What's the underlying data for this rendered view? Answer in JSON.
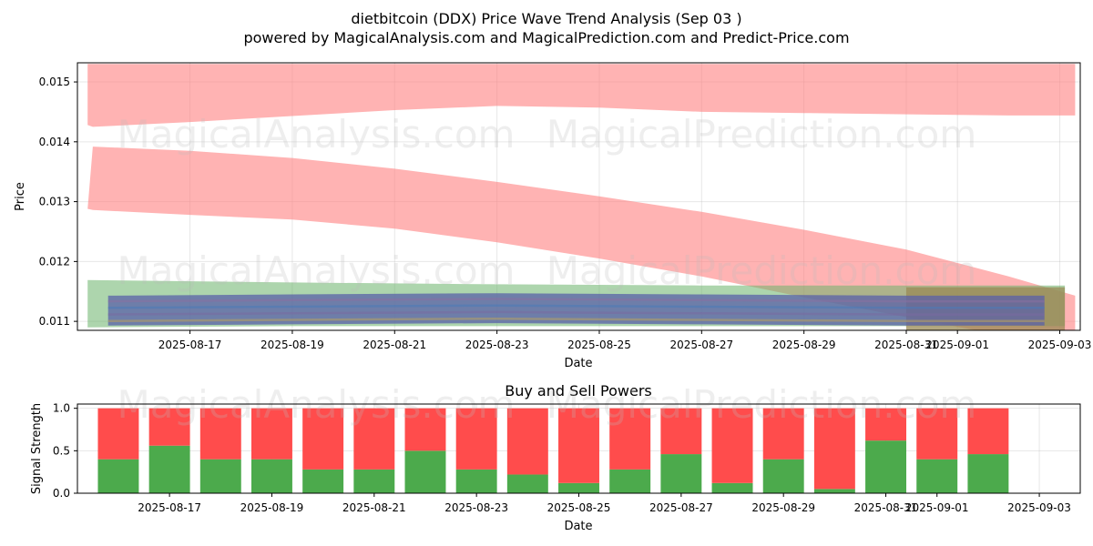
{
  "title": "dietbitcoin (DDX) Price Wave Trend Analysis (Sep 03 )",
  "subtitle": "powered by MagicalAnalysis.com and MagicalPrediction.com and Predict-Price.com",
  "watermark": {
    "left": "MagicalAnalysis.com",
    "right": "MagicalPrediction.com"
  },
  "colors": {
    "red_band": "#ff8080",
    "green_band": "#6ab36a",
    "buy": "#4caa4c",
    "sell": "#ff4c4c",
    "grid": "#b0b0b0"
  },
  "chart_data": [
    {
      "type": "area",
      "xlabel": "Date",
      "ylabel": "Price",
      "x_ticks": [
        "2025-08-17",
        "2025-08-19",
        "2025-08-21",
        "2025-08-23",
        "2025-08-25",
        "2025-08-27",
        "2025-08-29",
        "2025-08-31",
        "2025-09-01",
        "2025-09-03"
      ],
      "x_tick_days": [
        2,
        4,
        6,
        8,
        10,
        12,
        14,
        16,
        17,
        19
      ],
      "y_ticks": [
        "0.011",
        "0.012",
        "0.013",
        "0.014",
        "0.015"
      ],
      "y_tick_values": [
        0.011,
        0.012,
        0.013,
        0.014,
        0.015
      ],
      "xlim": [
        -0.2,
        19.4
      ],
      "ylim": [
        0.01085,
        0.01532
      ],
      "grid": true,
      "bands": [
        {
          "color": "red",
          "x": [
            0,
            0.1,
            2,
            4,
            6,
            8,
            10,
            12,
            14,
            16,
            18,
            19.3
          ],
          "upper": [
            0.0153,
            0.0153,
            0.0153,
            0.0153,
            0.0153,
            0.0153,
            0.0153,
            0.0153,
            0.0153,
            0.0153,
            0.0153,
            0.0153
          ],
          "lower": [
            0.01428,
            0.01425,
            0.01433,
            0.01443,
            0.01453,
            0.0146,
            0.01457,
            0.0145,
            0.01448,
            0.01446,
            0.01444,
            0.01444
          ]
        },
        {
          "color": "red",
          "x": [
            0,
            0.1,
            2,
            4,
            6,
            8,
            10,
            12,
            14,
            16,
            18,
            19.3
          ],
          "upper": [
            0.01288,
            0.01392,
            0.01385,
            0.01373,
            0.01355,
            0.01333,
            0.01309,
            0.01283,
            0.01253,
            0.0122,
            0.01175,
            0.01143
          ],
          "lower": [
            0.01288,
            0.01286,
            0.01278,
            0.0127,
            0.01255,
            0.01232,
            0.01205,
            0.01175,
            0.0114,
            0.01107,
            0.01075,
            0.0104
          ]
        },
        {
          "color": "green",
          "x": [
            0,
            4,
            8,
            12,
            16,
            19.1
          ],
          "upper": [
            0.01169,
            0.01165,
            0.01162,
            0.0116,
            0.0116,
            0.0116
          ],
          "lower": [
            0.0109,
            0.01092,
            0.01092,
            0.01092,
            0.01092,
            0.01092
          ]
        },
        {
          "color": "olive",
          "x": [
            16,
            19.1
          ],
          "upper": [
            0.01157,
            0.01157
          ],
          "lower": [
            0.01085,
            0.01085
          ]
        },
        {
          "color": "blue",
          "x": [
            0.4,
            4,
            8,
            12,
            16,
            18.7
          ],
          "upper": [
            0.01143,
            0.01145,
            0.01147,
            0.01145,
            0.01143,
            0.01143
          ],
          "lower": [
            0.01093,
            0.01095,
            0.01097,
            0.01095,
            0.01093,
            0.01093
          ]
        }
      ]
    },
    {
      "type": "bar",
      "title": "Buy and Sell Powers",
      "xlabel": "Date",
      "ylabel": "Signal Strength",
      "x_ticks": [
        "2025-08-17",
        "2025-08-19",
        "2025-08-21",
        "2025-08-23",
        "2025-08-25",
        "2025-08-27",
        "2025-08-29",
        "2025-08-31",
        "2025-09-01",
        "2025-09-03"
      ],
      "x_tick_days": [
        1,
        3,
        5,
        7,
        9,
        11,
        13,
        15,
        16,
        18
      ],
      "y_ticks": [
        "0.0",
        "0.5",
        "1.0"
      ],
      "y_tick_values": [
        0,
        0.5,
        1.0
      ],
      "xlim": [
        -0.8,
        18.8
      ],
      "ylim": [
        0,
        1.05
      ],
      "grid": true,
      "series": [
        {
          "name": "Buy",
          "values": [
            0.4,
            0.56,
            0.4,
            0.4,
            0.28,
            0.28,
            0.5,
            0.28,
            0.22,
            0.12,
            0.28,
            0.46,
            0.12,
            0.4,
            0.05,
            0.62,
            0.4,
            0.46
          ]
        },
        {
          "name": "Sell",
          "values": [
            0.6,
            0.44,
            0.6,
            0.6,
            0.72,
            0.72,
            0.5,
            0.72,
            0.78,
            0.88,
            0.72,
            0.54,
            0.88,
            0.6,
            0.95,
            0.38,
            0.6,
            0.54
          ]
        }
      ]
    }
  ]
}
